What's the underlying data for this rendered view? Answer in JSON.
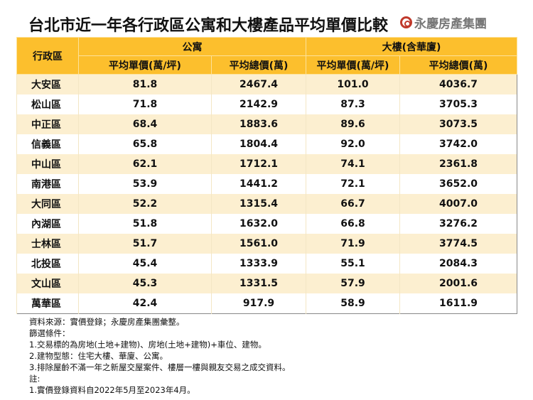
{
  "title": "台北市近一年各行政區公寓和大樓產品平均單價比較",
  "logo": {
    "text": "永慶房產集團",
    "brand_color": "#c0392b"
  },
  "table": {
    "header_color": "#fcbf2d",
    "stripe_color": "#fcefd0",
    "district_header": "行政區",
    "groups": [
      "公寓",
      "大樓(含華廈)"
    ],
    "subheaders": [
      "平均單價(萬/坪)",
      "平均總價(萬)",
      "平均單價(萬/坪)",
      "平均總價(萬)"
    ],
    "rows": [
      [
        "大安區",
        "81.8",
        "2467.4",
        "101.0",
        "4036.7"
      ],
      [
        "松山區",
        "71.8",
        "2142.9",
        "87.3",
        "3705.3"
      ],
      [
        "中正區",
        "68.4",
        "1883.6",
        "89.6",
        "3073.5"
      ],
      [
        "信義區",
        "65.8",
        "1804.4",
        "92.0",
        "3742.0"
      ],
      [
        "中山區",
        "62.1",
        "1712.1",
        "74.1",
        "2361.8"
      ],
      [
        "南港區",
        "53.9",
        "1441.2",
        "72.1",
        "3652.0"
      ],
      [
        "大同區",
        "52.2",
        "1315.4",
        "66.7",
        "4007.0"
      ],
      [
        "內湖區",
        "51.8",
        "1632.0",
        "66.8",
        "3276.2"
      ],
      [
        "士林區",
        "51.7",
        "1561.0",
        "71.9",
        "3774.5"
      ],
      [
        "北投區",
        "45.4",
        "1333.9",
        "55.1",
        "2084.3"
      ],
      [
        "文山區",
        "45.3",
        "1331.5",
        "57.9",
        "2001.6"
      ],
      [
        "萬華區",
        "42.4",
        "917.9",
        "58.9",
        "1611.9"
      ]
    ]
  },
  "notes": [
    "資料來源：實價登錄；永慶房產集團彙整。",
    "篩選條件：",
    "1.交易標的為房地(土地+建物)、房地(土地+建物)+車位、建物。",
    "2.建物型態：住宅大樓、華廈、公寓。",
    "3.排除屋齡不滿一年之新屋交屋案件、樓層一樓與親友交易之成交資料。",
    "註:",
    "1.實價登錄資料自2022年5月至2023年4月。"
  ]
}
